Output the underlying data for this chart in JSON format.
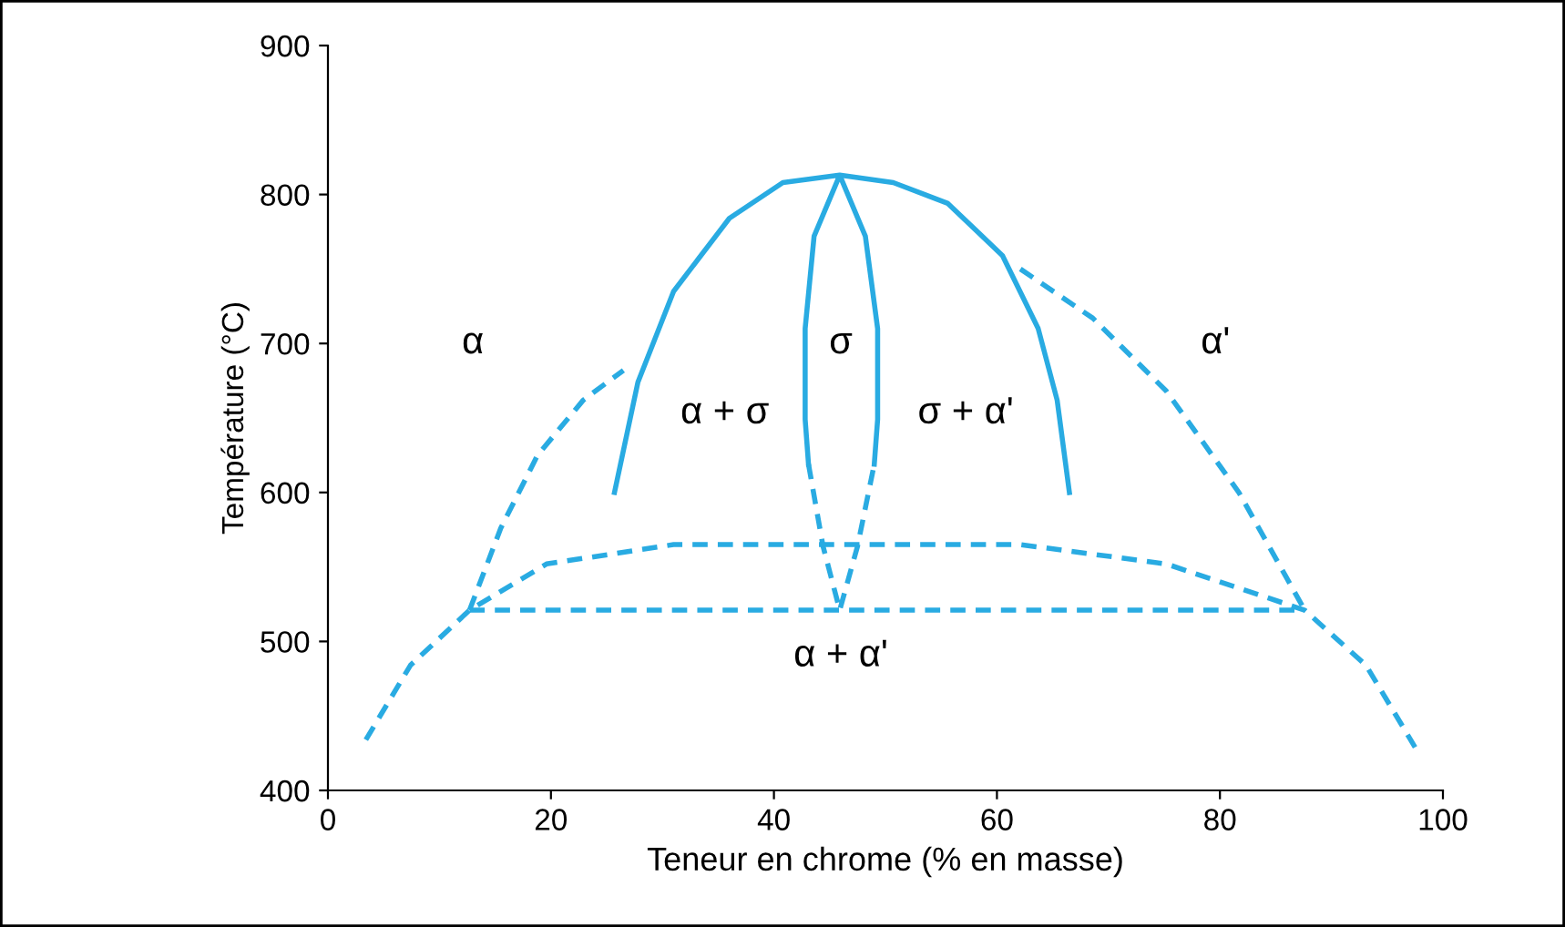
{
  "chart_data": {
    "type": "line",
    "xlabel": "Teneur en chrome (% en masse)",
    "ylabel": "Température (°C)",
    "xlim": [
      0,
      100
    ],
    "xticks": [
      0,
      20,
      40,
      60,
      80,
      100
    ],
    "ylim": [
      400,
      900
    ],
    "yticks": [
      400,
      500,
      600,
      700,
      800,
      900
    ],
    "grid": false,
    "legend": false,
    "series": [
      {
        "color": "#29abe2",
        "line_style": "solid",
        "x": [
          25.7,
          27.8,
          31,
          36,
          40.8,
          45.9,
          50.7,
          55.6,
          60.5,
          63.7,
          65.4,
          66.5,
          null,
          43.1,
          42.8,
          42.8,
          43.6,
          45.9,
          48.2,
          49.3,
          49.3,
          49
        ],
        "values": [
          600,
          674,
          735,
          784,
          808,
          813,
          808,
          794,
          759,
          710,
          662,
          600,
          null,
          619,
          649,
          710,
          772,
          813,
          772,
          710,
          649,
          619
        ]
      },
      {
        "color": "#29abe2",
        "line_style": "dashed",
        "x": [
          43.1,
          44.4,
          45.9,
          47.5,
          49
        ],
        "values": [
          619,
          564,
          521,
          564,
          619
        ]
      },
      {
        "color": "#29abe2",
        "line_style": "dashed",
        "x": [
          12.7,
          15.5,
          18.8,
          22.9,
          26.5
        ],
        "values": [
          521,
          576,
          625,
          662,
          682
        ]
      },
      {
        "color": "#29abe2",
        "line_style": "dashed",
        "x": [
          62.1,
          68.6,
          75.2,
          81.7,
          87.6
        ],
        "values": [
          750,
          717,
          668,
          600,
          521
        ]
      },
      {
        "color": "#29abe2",
        "line_style": "dashed",
        "x": [
          3.4,
          7.4,
          12.7,
          19.6,
          31,
          45.8,
          62.1,
          75.2,
          87.6,
          93.1,
          97.5
        ],
        "values": [
          434,
          484,
          521,
          552,
          565,
          565,
          565,
          552,
          521,
          484,
          429
        ]
      },
      {
        "color": "#29abe2",
        "line_style": "dashed",
        "x": [
          12.7,
          87.6
        ],
        "values": [
          521,
          521
        ]
      }
    ],
    "annotations": [
      "α",
      "α + σ",
      "σ",
      "σ + α'",
      "α'",
      "α + α'"
    ]
  }
}
